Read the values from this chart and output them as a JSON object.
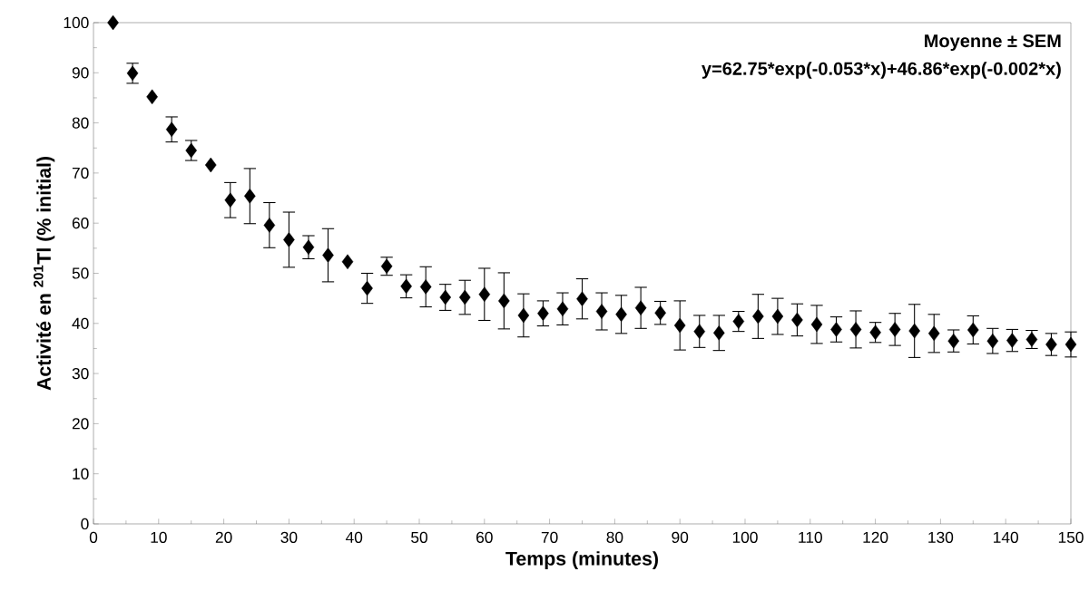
{
  "chart_data": {
    "type": "scatter",
    "xlabel": "Temps (minutes)",
    "ylabel": "Activité en $^{201}$Tl (% initial)",
    "annotations": [
      "Moyenne ± SEM",
      "y=62.75*exp(-0.053*x)+46.86*exp(-0.002*x)"
    ],
    "x": [
      3,
      6,
      9,
      12,
      15,
      18,
      21,
      24,
      27,
      30,
      33,
      36,
      39,
      42,
      45,
      48,
      51,
      54,
      57,
      60,
      63,
      66,
      69,
      72,
      75,
      78,
      81,
      84,
      87,
      90,
      93,
      96,
      99,
      102,
      105,
      108,
      111,
      114,
      117,
      120,
      123,
      126,
      129,
      132,
      135,
      138,
      141,
      144,
      147,
      150
    ],
    "values": [
      100,
      89.9,
      85.2,
      78.7,
      74.5,
      71.6,
      64.6,
      65.4,
      59.6,
      56.7,
      55.2,
      53.6,
      52.3,
      47.0,
      51.4,
      47.4,
      47.3,
      45.2,
      45.2,
      45.8,
      44.5,
      41.6,
      42.0,
      42.9,
      44.9,
      42.4,
      41.8,
      43.1,
      42.1,
      39.6,
      38.4,
      38.1,
      40.4,
      41.4,
      41.4,
      40.7,
      39.8,
      38.8,
      38.8,
      38.2,
      38.8,
      38.5,
      38.0,
      36.5,
      38.7,
      36.5,
      36.6,
      36.8,
      35.8,
      35.8
    ],
    "errors": [
      null,
      2,
      null,
      2.5,
      2,
      null,
      3.5,
      5.5,
      4.5,
      5.5,
      2.3,
      5.3,
      null,
      3,
      1.8,
      2.3,
      4,
      2.6,
      3.4,
      5.2,
      5.6,
      4.3,
      2.5,
      3.2,
      4,
      3.7,
      3.8,
      4.1,
      2.3,
      4.9,
      3.2,
      3.5,
      2,
      4.4,
      3.6,
      3.2,
      3.8,
      2.5,
      3.7,
      2,
      3.2,
      5.3,
      3.8,
      2.2,
      2.8,
      2.5,
      2.2,
      1.8,
      2.2,
      2.5
    ],
    "color": "#000000",
    "marker": "diamond",
    "xlim": [
      0,
      150
    ],
    "ylim": [
      0,
      100
    ],
    "xticks": [
      0,
      10,
      20,
      30,
      40,
      50,
      60,
      70,
      80,
      90,
      100,
      110,
      120,
      130,
      140,
      150
    ],
    "yticks": [
      0,
      10,
      20,
      30,
      40,
      50,
      60,
      70,
      80,
      90,
      100
    ],
    "grid": false
  }
}
